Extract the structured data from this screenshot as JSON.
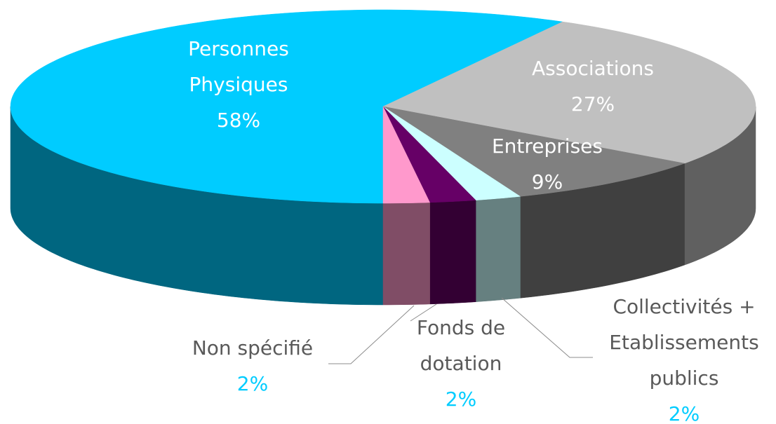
{
  "chart_data": {
    "type": "pie3d",
    "categories": [
      "Personnes Physiques",
      "Associations",
      "Entreprises",
      "Collectivités + Etablissements publics",
      "Fonds de dotation",
      "Non spécifié"
    ],
    "values": [
      58,
      27,
      9,
      2,
      2,
      2
    ],
    "value_labels": [
      "58%",
      "27%",
      "9%",
      "2%",
      "2%",
      "2%"
    ],
    "colors": [
      "#00ccff",
      "#c0c0c0",
      "#808080",
      "#ccffff",
      "#660066",
      "#ff99cc"
    ]
  }
}
